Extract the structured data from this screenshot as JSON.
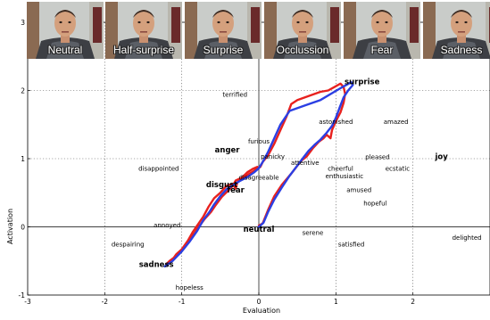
{
  "chart_data": {
    "type": "line",
    "title": "",
    "xlabel": "Evaluation",
    "ylabel": "Activation",
    "xlim": [
      -3,
      3
    ],
    "ylim": [
      -1,
      3
    ],
    "x_ticks": [
      "-3",
      "-2",
      "-1",
      "0",
      "1",
      "2"
    ],
    "y_ticks": [
      "-1",
      "0",
      "1",
      "2",
      "3"
    ],
    "grid": "dotted",
    "frames": [
      {
        "label": "Neutral"
      },
      {
        "label": "Half-surprise"
      },
      {
        "label": "Surprise"
      },
      {
        "label": "Occlussion"
      },
      {
        "label": "Fear"
      },
      {
        "label": "Sadness"
      }
    ],
    "emotion_labels": [
      {
        "text": "terrified",
        "x": -0.31,
        "y": 1.95,
        "bold": false
      },
      {
        "text": "surprise",
        "x": 1.34,
        "y": 2.13,
        "bold": true
      },
      {
        "text": "astonished",
        "x": 1.0,
        "y": 1.55,
        "bold": false
      },
      {
        "text": "amazed",
        "x": 1.78,
        "y": 1.55,
        "bold": false
      },
      {
        "text": "furious",
        "x": 0.0,
        "y": 1.26,
        "bold": false
      },
      {
        "text": "anger",
        "x": -0.41,
        "y": 1.13,
        "bold": true
      },
      {
        "text": "panicky",
        "x": 0.18,
        "y": 1.04,
        "bold": false
      },
      {
        "text": "attentive",
        "x": 0.6,
        "y": 0.95,
        "bold": false
      },
      {
        "text": "pleased",
        "x": 1.54,
        "y": 1.03,
        "bold": false
      },
      {
        "text": "joy",
        "x": 2.37,
        "y": 1.03,
        "bold": true
      },
      {
        "text": "disappointed",
        "x": -1.3,
        "y": 0.86,
        "bold": false
      },
      {
        "text": "cheerful",
        "x": 1.06,
        "y": 0.86,
        "bold": false
      },
      {
        "text": "ecstatic",
        "x": 1.8,
        "y": 0.86,
        "bold": false
      },
      {
        "text": "enthusiastic",
        "x": 1.11,
        "y": 0.75,
        "bold": false
      },
      {
        "text": "disagreeable",
        "x": 0.0,
        "y": 0.73,
        "bold": false
      },
      {
        "text": "disgust",
        "x": -0.48,
        "y": 0.62,
        "bold": true
      },
      {
        "text": "fear",
        "x": -0.3,
        "y": 0.54,
        "bold": true
      },
      {
        "text": "amused",
        "x": 1.3,
        "y": 0.55,
        "bold": false
      },
      {
        "text": "hopeful",
        "x": 1.51,
        "y": 0.35,
        "bold": false
      },
      {
        "text": "annoyed",
        "x": -1.19,
        "y": 0.03,
        "bold": false
      },
      {
        "text": "neutral",
        "x": 0.0,
        "y": -0.03,
        "bold": true
      },
      {
        "text": "serene",
        "x": 0.7,
        "y": -0.08,
        "bold": false
      },
      {
        "text": "delighted",
        "x": 2.7,
        "y": -0.15,
        "bold": false
      },
      {
        "text": "despairing",
        "x": -1.7,
        "y": -0.25,
        "bold": false
      },
      {
        "text": "satisfied",
        "x": 1.2,
        "y": -0.25,
        "bold": false
      },
      {
        "text": "sadness",
        "x": -1.33,
        "y": -0.55,
        "bold": true
      },
      {
        "text": "hopeless",
        "x": -0.9,
        "y": -0.88,
        "bold": false
      }
    ],
    "series": [
      {
        "color": "#e8211e",
        "points": [
          [
            0.0,
            0.02
          ],
          [
            0.05,
            0.05
          ],
          [
            0.12,
            0.25
          ],
          [
            0.2,
            0.45
          ],
          [
            0.3,
            0.62
          ],
          [
            0.42,
            0.78
          ],
          [
            0.55,
            0.97
          ],
          [
            0.62,
            1.03
          ],
          [
            0.7,
            1.15
          ],
          [
            0.78,
            1.25
          ],
          [
            0.84,
            1.3
          ],
          [
            0.88,
            1.35
          ],
          [
            0.93,
            1.3
          ],
          [
            0.95,
            1.42
          ],
          [
            1.0,
            1.55
          ],
          [
            1.06,
            1.68
          ],
          [
            1.1,
            1.82
          ],
          [
            1.12,
            1.95
          ],
          [
            1.1,
            2.05
          ],
          [
            1.06,
            2.1
          ],
          [
            0.98,
            2.05
          ],
          [
            0.9,
            2.0
          ],
          [
            0.8,
            1.98
          ],
          [
            0.65,
            1.92
          ],
          [
            0.5,
            1.86
          ],
          [
            0.42,
            1.8
          ],
          [
            0.36,
            1.62
          ],
          [
            0.28,
            1.42
          ],
          [
            0.2,
            1.22
          ],
          [
            0.12,
            1.05
          ],
          [
            0.05,
            0.95
          ],
          [
            0.02,
            0.88
          ],
          [
            -0.05,
            0.83
          ],
          [
            -0.12,
            0.78
          ],
          [
            -0.2,
            0.72
          ],
          [
            -0.28,
            0.65
          ],
          [
            -0.3,
            0.56
          ],
          [
            -0.34,
            0.63
          ],
          [
            -0.42,
            0.6
          ],
          [
            -0.5,
            0.5
          ],
          [
            -0.58,
            0.42
          ],
          [
            -0.65,
            0.3
          ],
          [
            -0.72,
            0.15
          ],
          [
            -0.8,
            0.02
          ],
          [
            -0.86,
            -0.08
          ],
          [
            -0.92,
            -0.2
          ],
          [
            -1.0,
            -0.33
          ],
          [
            -1.07,
            -0.4
          ],
          [
            -1.12,
            -0.48
          ],
          [
            -1.2,
            -0.55
          ],
          [
            -1.16,
            -0.5
          ],
          [
            -1.1,
            -0.45
          ],
          [
            -1.02,
            -0.38
          ],
          [
            -0.95,
            -0.28
          ],
          [
            -0.86,
            -0.14
          ],
          [
            -0.78,
            0.0
          ],
          [
            -0.7,
            0.12
          ],
          [
            -0.62,
            0.22
          ],
          [
            -0.56,
            0.32
          ],
          [
            -0.48,
            0.44
          ],
          [
            -0.4,
            0.53
          ],
          [
            -0.34,
            0.6
          ],
          [
            -0.3,
            0.68
          ],
          [
            -0.22,
            0.72
          ],
          [
            -0.15,
            0.8
          ],
          [
            -0.08,
            0.85
          ],
          [
            -0.02,
            0.88
          ]
        ]
      },
      {
        "color": "#2b3fe3",
        "points": [
          [
            -1.22,
            -0.58
          ],
          [
            -1.12,
            -0.5
          ],
          [
            -1.05,
            -0.42
          ],
          [
            -1.0,
            -0.36
          ],
          [
            -0.9,
            -0.22
          ],
          [
            -0.8,
            -0.06
          ],
          [
            -0.72,
            0.1
          ],
          [
            -0.64,
            0.22
          ],
          [
            -0.58,
            0.33
          ],
          [
            -0.5,
            0.45
          ],
          [
            -0.42,
            0.55
          ],
          [
            -0.35,
            0.6
          ],
          [
            -0.25,
            0.67
          ],
          [
            -0.15,
            0.73
          ],
          [
            -0.06,
            0.8
          ],
          [
            0.0,
            0.86
          ],
          [
            0.05,
            0.95
          ],
          [
            0.12,
            1.1
          ],
          [
            0.2,
            1.3
          ],
          [
            0.28,
            1.5
          ],
          [
            0.4,
            1.7
          ],
          [
            0.6,
            1.78
          ],
          [
            0.8,
            1.86
          ],
          [
            0.98,
            1.98
          ],
          [
            1.1,
            2.06
          ],
          [
            1.2,
            2.12
          ],
          [
            1.22,
            2.08
          ],
          [
            1.16,
            2.0
          ],
          [
            1.1,
            1.9
          ],
          [
            1.05,
            1.75
          ],
          [
            1.0,
            1.6
          ],
          [
            0.95,
            1.48
          ],
          [
            0.88,
            1.38
          ],
          [
            0.8,
            1.28
          ],
          [
            0.72,
            1.2
          ],
          [
            0.65,
            1.12
          ],
          [
            0.58,
            1.02
          ],
          [
            0.5,
            0.9
          ],
          [
            0.4,
            0.75
          ],
          [
            0.3,
            0.58
          ],
          [
            0.2,
            0.4
          ],
          [
            0.12,
            0.22
          ],
          [
            0.06,
            0.06
          ],
          [
            0.0,
            0.0
          ]
        ]
      }
    ]
  }
}
